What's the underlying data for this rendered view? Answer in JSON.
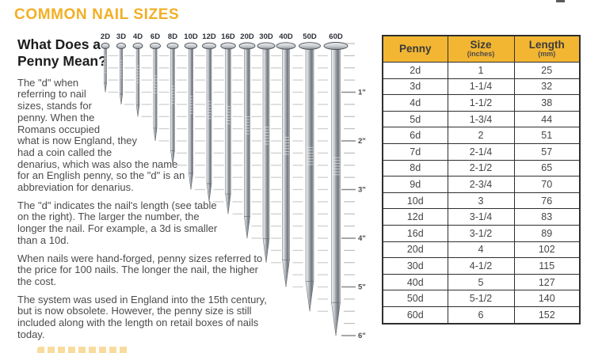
{
  "page": {
    "title": "COMMON NAIL SIZES"
  },
  "intro": {
    "heading": "What Does a Penny Mean?",
    "paragraphs": [
      "The \"d\" when referring to nail sizes, stands for penny. When the Romans occupied what is now England, they had a coin called the denarius, which was also the name for an English penny, so the \"d\" is an abbreviation for denarius.",
      "The \"d\" indicates the nail's length (see table on the right). The larger the number, the longer the nail. For example, a 3d is smaller than a 10d.",
      "When nails were hand-forged, penny sizes referred to the price for 100 nails. The longer the nail, the higher the cost.",
      "The system was used in England into the 15th century, but is now obsolete. However, the penny size is still included along with the length on retail boxes of nails today."
    ]
  },
  "diagram": {
    "nails": [
      {
        "label": "2D",
        "length_in": 1
      },
      {
        "label": "3D",
        "length_in": 1.25
      },
      {
        "label": "4D",
        "length_in": 1.5
      },
      {
        "label": "6D",
        "length_in": 2
      },
      {
        "label": "8D",
        "length_in": 2.5
      },
      {
        "label": "10D",
        "length_in": 3
      },
      {
        "label": "12D",
        "length_in": 3.25
      },
      {
        "label": "16D",
        "length_in": 3.5
      },
      {
        "label": "20D",
        "length_in": 4
      },
      {
        "label": "30D",
        "length_in": 4.5
      },
      {
        "label": "40D",
        "length_in": 5
      },
      {
        "label": "50D",
        "length_in": 5.5
      },
      {
        "label": "60D",
        "length_in": 6
      }
    ],
    "ruler_labels": [
      "1\"",
      "2\"",
      "3\"",
      "4\"",
      "5\"",
      "6\""
    ]
  },
  "table": {
    "headers": [
      {
        "title": "Penny",
        "sub": ""
      },
      {
        "title": "Size",
        "sub": "(inches)"
      },
      {
        "title": "Length",
        "sub": "(mm)"
      }
    ],
    "rows": [
      [
        "2d",
        "1",
        "25"
      ],
      [
        "3d",
        "1-1/4",
        "32"
      ],
      [
        "4d",
        "1-1/2",
        "38"
      ],
      [
        "5d",
        "1-3/4",
        "44"
      ],
      [
        "6d",
        "2",
        "51"
      ],
      [
        "7d",
        "2-1/4",
        "57"
      ],
      [
        "8d",
        "2-1/2",
        "65"
      ],
      [
        "9d",
        "2-3/4",
        "70"
      ],
      [
        "10d",
        "3",
        "76"
      ],
      [
        "12d",
        "3-1/4",
        "83"
      ],
      [
        "16d",
        "3-1/2",
        "89"
      ],
      [
        "20d",
        "4",
        "102"
      ],
      [
        "30d",
        "4-1/2",
        "115"
      ],
      [
        "40d",
        "5",
        "127"
      ],
      [
        "50d",
        "5-1/2",
        "140"
      ],
      [
        "60d",
        "6",
        "152"
      ]
    ]
  },
  "colors": {
    "accent": "#F2AF25",
    "table_header": "#F2B632",
    "nail_dark": "#6f757b",
    "nail_light": "#f2f3f4"
  }
}
